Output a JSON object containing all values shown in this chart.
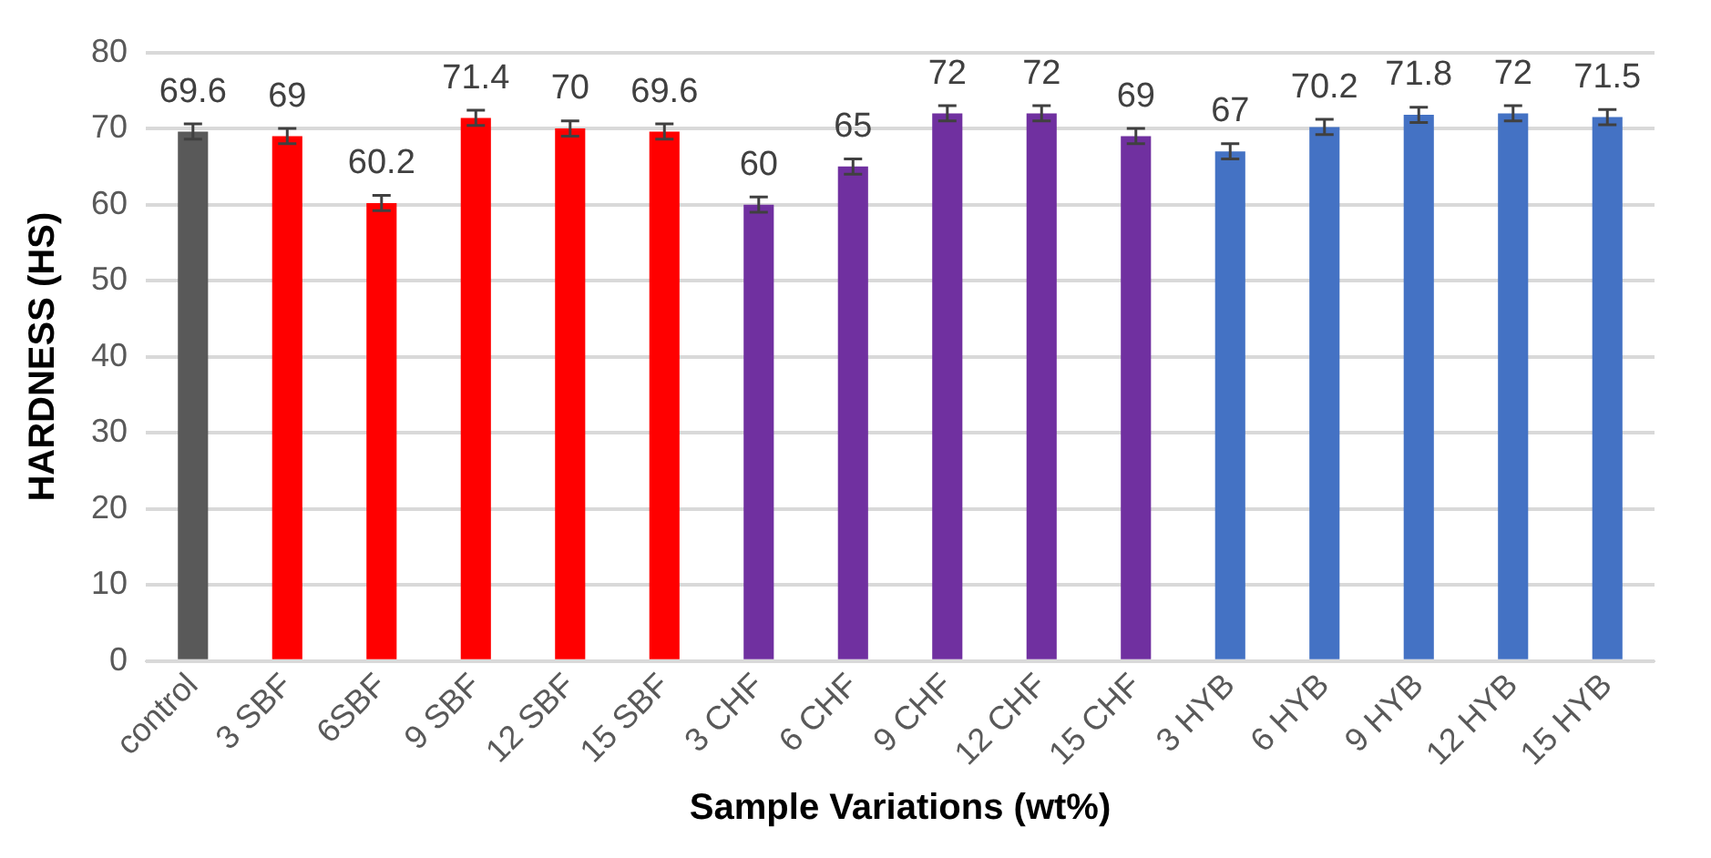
{
  "chart_data": {
    "type": "bar",
    "xlabel": "Sample Variations (wt%)",
    "ylabel": "HARDNESS (HS)",
    "categories": [
      "control",
      "3 SBF",
      "6SBF",
      "9 SBF",
      "12 SBF",
      "15 SBF",
      "3 CHF",
      "6 CHF",
      "9 CHF",
      "12 CHF",
      "15 CHF",
      "3 HYB",
      "6 HYB",
      "9 HYB",
      "12 HYB",
      "15 HYB"
    ],
    "values": [
      69.6,
      69,
      60.2,
      71.4,
      70,
      69.6,
      60,
      65,
      72,
      72,
      69,
      67,
      70.2,
      71.8,
      72,
      71.5
    ],
    "errors": [
      1,
      1,
      1,
      1,
      1,
      1,
      1,
      1,
      1,
      1,
      1,
      1,
      1,
      1,
      1,
      1
    ],
    "colors": [
      "#595959",
      "#ff0000",
      "#ff0000",
      "#ff0000",
      "#ff0000",
      "#ff0000",
      "#7030a0",
      "#7030a0",
      "#7030a0",
      "#7030a0",
      "#7030a0",
      "#4472c4",
      "#4472c4",
      "#4472c4",
      "#4472c4",
      "#4472c4"
    ],
    "ylim": [
      0,
      80
    ],
    "yticks": [
      0,
      10,
      20,
      30,
      40,
      50,
      60,
      70,
      80
    ],
    "grid": "y",
    "data_labels": true,
    "legend": false
  }
}
